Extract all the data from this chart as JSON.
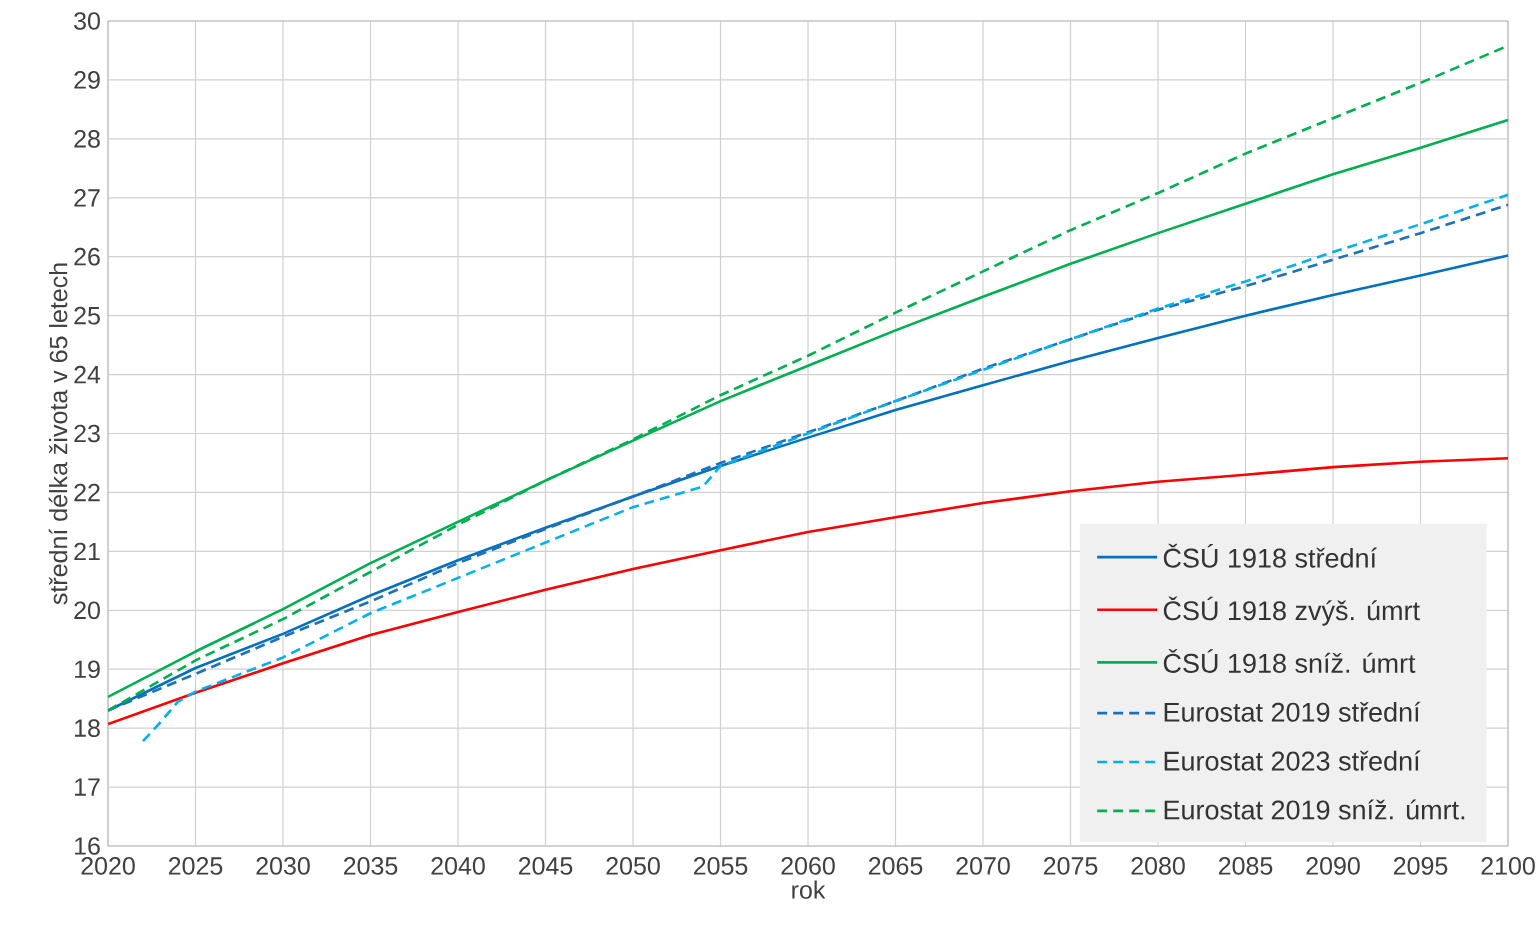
{
  "chart_data": {
    "type": "line",
    "xlabel": "rok",
    "ylabel": "střední délka života v 65 letech",
    "xlim": [
      2020,
      2100
    ],
    "xticks": [
      2020,
      2025,
      2030,
      2035,
      2040,
      2045,
      2050,
      2055,
      2060,
      2065,
      2070,
      2075,
      2080,
      2085,
      2090,
      2095,
      2100
    ],
    "ylim": [
      16,
      30
    ],
    "yticks": [
      16,
      17,
      18,
      19,
      20,
      21,
      22,
      23,
      24,
      25,
      26,
      27,
      28,
      29,
      30
    ],
    "grid": true,
    "legend": "bottom right",
    "marker": "none",
    "x": [
      2020,
      2025,
      2030,
      2035,
      2040,
      2045,
      2050,
      2055,
      2060,
      2065,
      2070,
      2075,
      2080,
      2085,
      2090,
      2095,
      2100
    ],
    "series": [
      {
        "name": "ČSÚ 1918 střední",
        "color": "#0070c0",
        "line_style": "solid",
        "values": [
          18.3,
          19.02,
          19.6,
          20.25,
          20.85,
          21.4,
          21.93,
          22.45,
          22.93,
          23.4,
          23.82,
          24.23,
          24.62,
          25.0,
          25.35,
          25.68,
          26.02
        ]
      },
      {
        "name": "ČSÚ 1918 zvýš. úmrt",
        "color": "#ff0000",
        "line_style": "solid",
        "values": [
          18.07,
          18.6,
          19.1,
          19.58,
          19.97,
          20.35,
          20.7,
          21.02,
          21.33,
          21.58,
          21.82,
          22.02,
          22.18,
          22.3,
          22.43,
          22.52,
          22.58
        ]
      },
      {
        "name": "ČSÚ 1918 sníž. úmrt",
        "color": "#00b050",
        "line_style": "solid",
        "values": [
          18.53,
          19.3,
          20.02,
          20.8,
          21.5,
          22.2,
          22.88,
          23.55,
          24.15,
          24.75,
          25.32,
          25.88,
          26.4,
          26.9,
          27.4,
          27.85,
          28.32
        ]
      },
      {
        "name": "Eurostat 2019 střední",
        "color": "#1f6fbf",
        "line_style": "dashed",
        "values": [
          18.3,
          18.92,
          19.55,
          20.15,
          20.8,
          21.38,
          21.93,
          22.5,
          23.02,
          23.55,
          24.1,
          24.6,
          25.1,
          25.5,
          25.95,
          26.4,
          26.88
        ]
      },
      {
        "name": "Eurostat 2023 střední",
        "color": "#00b0f0",
        "line_style": "dashed",
        "x": [
          2022,
          2023,
          2024,
          2025,
          2030,
          2035,
          2040,
          2045,
          2050,
          2054,
          2055,
          2060,
          2065,
          2070,
          2075,
          2080,
          2085,
          2090,
          2095,
          2100
        ],
        "values": [
          17.78,
          18.1,
          18.45,
          18.62,
          19.2,
          19.95,
          20.55,
          21.15,
          21.75,
          22.1,
          22.45,
          23.0,
          23.55,
          24.08,
          24.6,
          25.12,
          25.58,
          26.08,
          26.55,
          27.05
        ]
      },
      {
        "name": "Eurostat 2019 sníž. úmrt.",
        "color": "#00b050",
        "line_style": "dashed",
        "values": [
          18.3,
          19.15,
          19.85,
          20.65,
          21.45,
          22.2,
          22.9,
          23.65,
          24.32,
          25.05,
          25.75,
          26.45,
          27.08,
          27.75,
          28.35,
          28.95,
          29.58
        ]
      }
    ]
  }
}
